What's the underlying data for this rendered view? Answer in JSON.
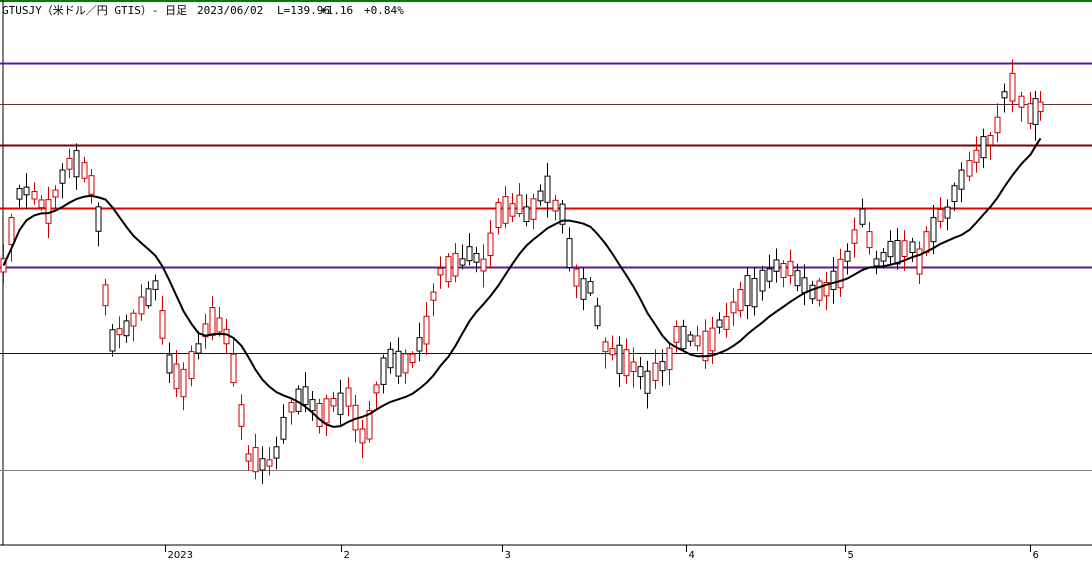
{
  "header": {
    "symbol": "GTUSJY（米ドル／円 GTIS）- 日足",
    "date": "2023/06/02",
    "last": "L=139.96",
    "change": "+1.16",
    "change_pct": "+0.84%"
  },
  "chart_data": {
    "type": "candlestick",
    "x_tick_labels": [
      "2023",
      "2",
      "3",
      "4",
      "5",
      "6"
    ],
    "colors": {
      "up_candle": "#cc0000",
      "down_candle": "#000000",
      "moving_average": "#000000",
      "frame_top": "#008000",
      "band_purple": "#5a1a8c",
      "band_dark_red": "#7a0000",
      "band_red": "#e00000",
      "band_blue": "#0000cc",
      "band_gray": "#808080",
      "band_brown": "#6b2e2e"
    },
    "horizontal_lines": [
      {
        "price": 141.4,
        "color": "#5a1a8c",
        "width": 2
      },
      {
        "price": 139.1,
        "color": "#6b2e2e",
        "width": 1
      },
      {
        "price": 136.8,
        "color": "#7a0000",
        "width": 2
      },
      {
        "price": 133.3,
        "color": "#e00000",
        "width": 2
      },
      {
        "price": 130.0,
        "color": "#5a1a8c",
        "width": 2
      },
      {
        "price": 125.2,
        "color": "#0000cc",
        "width": 1
      },
      {
        "price": 118.7,
        "color": "#808080",
        "width": 1
      }
    ],
    "ylim": [
      114.5,
      144.8
    ]
  }
}
